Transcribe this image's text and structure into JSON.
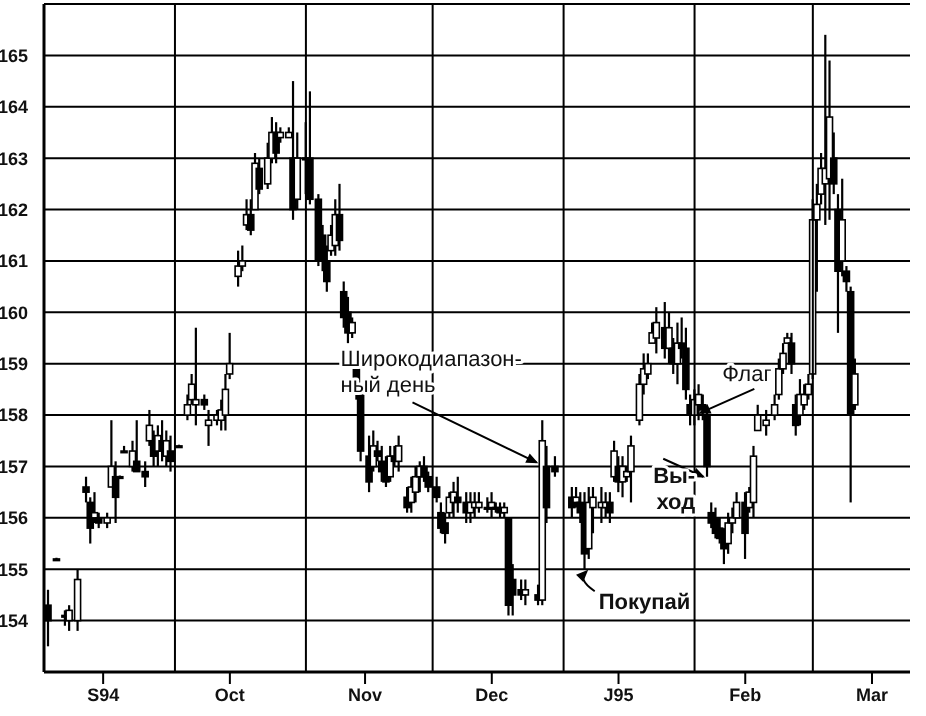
{
  "chart_data": {
    "type": "candlestick",
    "x": [
      "1994-09-01",
      "1994-09-03",
      "1994-09-05",
      "1994-09-06",
      "1994-09-08",
      "1994-09-10",
      "1994-09-11",
      "1994-09-12",
      "1994-09-13",
      "1994-09-15",
      "1994-09-16",
      "1994-09-17",
      "1994-09-18",
      "1994-09-19",
      "1994-09-21",
      "1994-09-22",
      "1994-09-24",
      "1994-09-25",
      "1994-09-26",
      "1994-09-27",
      "1994-09-28",
      "1994-09-29",
      "1994-09-30",
      "1994-10-02",
      "1994-10-04",
      "1994-10-05",
      "1994-10-06",
      "1994-10-08",
      "1994-10-09",
      "1994-10-11",
      "1994-10-12",
      "1994-10-13",
      "1994-10-14",
      "1994-10-16",
      "1994-10-17",
      "1994-10-18",
      "1994-10-19",
      "1994-10-20",
      "1994-10-21",
      "1994-10-23",
      "1994-10-24",
      "1994-10-25",
      "1994-10-26",
      "1994-10-28",
      "1994-10-29",
      "1994-10-30",
      "1994-11-01",
      "1994-11-02",
      "1994-11-04",
      "1994-11-05",
      "1994-11-06",
      "1994-11-07",
      "1994-11-08",
      "1994-11-09",
      "1994-11-10",
      "1994-11-11",
      "1994-11-12",
      "1994-11-13",
      "1994-11-14",
      "1994-11-16",
      "1994-11-17",
      "1994-11-18",
      "1994-11-19",
      "1994-11-20",
      "1994-11-21",
      "1994-11-22",
      "1994-11-23",
      "1994-11-25",
      "1994-11-26",
      "1994-11-27",
      "1994-11-28",
      "1994-11-29",
      "1994-11-30",
      "1994-12-02",
      "1994-12-03",
      "1994-12-04",
      "1994-12-05",
      "1994-12-06",
      "1994-12-07",
      "1994-12-09",
      "1994-12-10",
      "1994-12-11",
      "1994-12-12",
      "1994-12-14",
      "1994-12-15",
      "1994-12-16",
      "1994-12-17",
      "1994-12-18",
      "1994-12-19",
      "1994-12-20",
      "1994-12-22",
      "1994-12-23",
      "1994-12-26",
      "1994-12-27",
      "1994-12-28",
      "1994-12-30",
      "1995-01-03",
      "1995-01-04",
      "1995-01-05",
      "1995-01-06",
      "1995-01-07",
      "1995-01-08",
      "1995-01-10",
      "1995-01-11",
      "1995-01-12",
      "1995-01-13",
      "1995-01-14",
      "1995-01-15",
      "1995-01-16",
      "1995-01-17",
      "1995-01-19",
      "1995-01-20",
      "1995-01-21",
      "1995-01-22",
      "1995-01-23",
      "1995-01-25",
      "1995-01-26",
      "1995-01-27",
      "1995-01-28",
      "1995-01-29",
      "1995-01-30",
      "1995-01-31",
      "1995-02-01",
      "1995-02-02",
      "1995-02-03",
      "1995-02-04",
      "1995-02-05",
      "1995-02-06",
      "1995-02-07",
      "1995-02-08",
      "1995-02-09",
      "1995-02-10",
      "1995-02-11",
      "1995-02-13",
      "1995-02-14",
      "1995-02-15",
      "1995-02-16",
      "1995-02-18",
      "1995-02-20",
      "1995-02-21",
      "1995-02-22",
      "1995-02-23",
      "1995-02-24",
      "1995-02-25",
      "1995-02-26",
      "1995-02-27",
      "1995-02-28",
      "1995-03-01",
      "1995-03-02",
      "1995-03-03",
      "1995-03-04",
      "1995-03-05",
      "1995-03-06",
      "1995-03-07",
      "1995-03-08",
      "1995-03-09",
      "1995-03-10",
      "1995-03-11"
    ],
    "ohlc": [
      [
        154.3,
        154.6,
        153.5,
        154.0
      ],
      [
        155.2,
        155.2,
        155.2,
        155.2
      ],
      [
        154.1,
        154.2,
        153.9,
        154.1
      ],
      [
        154.0,
        154.3,
        153.8,
        154.2
      ],
      [
        154.0,
        155.0,
        153.8,
        154.8
      ],
      [
        156.6,
        156.8,
        156.3,
        156.5
      ],
      [
        156.3,
        156.4,
        155.5,
        155.8
      ],
      [
        156.0,
        156.5,
        155.9,
        156.1
      ],
      [
        156.0,
        156.1,
        155.8,
        155.9
      ],
      [
        155.9,
        156.1,
        155.8,
        156.0
      ],
      [
        156.6,
        157.9,
        156.6,
        157.0
      ],
      [
        156.8,
        157.1,
        155.9,
        156.4
      ],
      [
        156.8,
        156.8,
        156.8,
        156.8
      ],
      [
        157.3,
        157.4,
        157.3,
        157.3
      ],
      [
        157.0,
        157.5,
        156.9,
        157.3
      ],
      [
        157.1,
        157.9,
        156.9,
        156.9
      ],
      [
        156.9,
        157.1,
        156.6,
        156.8
      ],
      [
        157.5,
        158.1,
        157.4,
        157.8
      ],
      [
        157.5,
        157.7,
        157.0,
        157.2
      ],
      [
        157.3,
        157.8,
        157.0,
        157.6
      ],
      [
        157.5,
        157.9,
        157.1,
        157.3
      ],
      [
        157.2,
        157.7,
        157.0,
        157.5
      ],
      [
        157.3,
        157.6,
        156.9,
        157.1
      ],
      [
        157.4,
        157.4,
        157.4,
        157.4
      ],
      [
        158.0,
        158.4,
        157.9,
        158.2
      ],
      [
        158.3,
        158.8,
        158.2,
        158.6
      ],
      [
        158.2,
        159.7,
        157.8,
        158.3
      ],
      [
        158.3,
        158.4,
        158.1,
        158.2
      ],
      [
        157.8,
        158.1,
        157.4,
        157.9
      ],
      [
        157.9,
        158.1,
        157.8,
        158.0
      ],
      [
        157.9,
        158.3,
        157.7,
        158.1
      ],
      [
        158.0,
        158.8,
        157.7,
        158.5
      ],
      [
        158.8,
        159.6,
        158.7,
        159.0
      ],
      [
        160.7,
        161.2,
        160.5,
        160.9
      ],
      [
        160.9,
        161.3,
        160.8,
        161.0
      ],
      [
        161.7,
        162.2,
        161.6,
        161.9
      ],
      [
        161.9,
        162.2,
        161.5,
        161.6
      ],
      [
        162.0,
        163.1,
        162.0,
        162.9
      ],
      [
        162.8,
        163.0,
        162.3,
        162.4
      ],
      [
        162.5,
        163.3,
        162.4,
        163.0
      ],
      [
        163.0,
        163.8,
        162.9,
        163.5
      ],
      [
        163.5,
        163.7,
        162.9,
        163.1
      ],
      [
        163.4,
        163.6,
        163.3,
        163.5
      ],
      [
        163.4,
        163.6,
        163.4,
        163.5
      ],
      [
        163.0,
        164.5,
        161.8,
        162.0
      ],
      [
        162.2,
        163.5,
        162.0,
        163.0
      ],
      [
        163.0,
        163.7,
        162.3,
        163.0
      ],
      [
        163.0,
        164.3,
        162.1,
        162.2
      ],
      [
        162.2,
        162.3,
        160.9,
        161.0
      ],
      [
        161.5,
        161.7,
        160.8,
        161.0
      ],
      [
        161.0,
        161.3,
        160.4,
        160.6
      ],
      [
        161.2,
        161.7,
        161.1,
        161.5
      ],
      [
        161.3,
        162.2,
        161.1,
        161.9
      ],
      [
        161.9,
        162.5,
        161.2,
        161.4
      ],
      [
        160.4,
        160.6,
        159.7,
        159.9
      ],
      [
        160.0,
        160.3,
        159.4,
        159.6
      ],
      [
        159.6,
        159.9,
        159.5,
        159.8
      ],
      [
        158.9,
        159.0,
        158.3,
        158.5
      ],
      [
        158.4,
        158.6,
        157.1,
        157.3
      ],
      [
        157.2,
        157.6,
        156.5,
        156.7
      ],
      [
        157.0,
        157.7,
        156.9,
        157.4
      ],
      [
        157.3,
        157.5,
        157.1,
        157.2
      ],
      [
        157.1,
        157.4,
        156.7,
        156.9
      ],
      [
        157.0,
        157.2,
        156.6,
        156.7
      ],
      [
        156.8,
        157.4,
        156.7,
        157.2
      ],
      [
        157.2,
        157.4,
        157.0,
        157.1
      ],
      [
        157.1,
        157.6,
        156.9,
        157.4
      ],
      [
        156.4,
        156.6,
        156.1,
        156.2
      ],
      [
        156.3,
        156.8,
        156.1,
        156.6
      ],
      [
        156.5,
        157.0,
        156.3,
        156.8
      ],
      [
        156.8,
        157.1,
        156.5,
        157.0
      ],
      [
        157.0,
        157.2,
        156.7,
        156.8
      ],
      [
        156.8,
        156.9,
        156.5,
        156.6
      ],
      [
        156.6,
        156.8,
        156.3,
        156.4
      ],
      [
        156.1,
        156.3,
        155.7,
        155.8
      ],
      [
        155.9,
        156.1,
        155.5,
        155.7
      ],
      [
        156.1,
        156.5,
        156.0,
        156.4
      ],
      [
        156.3,
        156.7,
        156.0,
        156.5
      ],
      [
        156.4,
        156.8,
        156.1,
        156.3
      ],
      [
        156.3,
        156.5,
        155.9,
        156.1
      ],
      [
        156.1,
        156.5,
        155.9,
        156.3
      ],
      [
        156.2,
        156.5,
        156.0,
        156.3
      ],
      [
        156.2,
        156.5,
        156.1,
        156.3
      ],
      [
        156.2,
        156.4,
        156.1,
        156.2
      ],
      [
        156.2,
        156.5,
        156.0,
        156.3
      ],
      [
        156.2,
        156.3,
        156.1,
        156.2
      ],
      [
        156.2,
        156.3,
        156.0,
        156.1
      ],
      [
        156.1,
        156.3,
        156.0,
        156.2
      ],
      [
        156.0,
        156.0,
        154.1,
        154.3
      ],
      [
        154.8,
        155.1,
        154.1,
        154.5
      ],
      [
        154.6,
        154.8,
        154.4,
        154.5
      ],
      [
        154.5,
        154.8,
        154.3,
        154.6
      ],
      [
        154.5,
        154.7,
        154.3,
        154.4
      ],
      [
        154.4,
        157.9,
        154.3,
        157.5
      ],
      [
        157.0,
        157.4,
        155.9,
        156.2
      ],
      [
        157.0,
        157.2,
        156.8,
        156.9
      ],
      [
        156.4,
        156.6,
        156.0,
        156.2
      ],
      [
        156.3,
        156.6,
        156.2,
        156.4
      ],
      [
        156.3,
        156.5,
        155.9,
        156.1
      ],
      [
        156.2,
        156.5,
        155.0,
        155.3
      ],
      [
        155.4,
        156.6,
        155.2,
        156.3
      ],
      [
        156.2,
        156.6,
        155.7,
        156.4
      ],
      [
        156.2,
        156.6,
        155.9,
        156.3
      ],
      [
        156.2,
        156.5,
        156.0,
        156.3
      ],
      [
        156.3,
        156.5,
        155.9,
        156.1
      ],
      [
        156.8,
        157.5,
        156.7,
        157.3
      ],
      [
        157.0,
        157.2,
        156.5,
        156.7
      ],
      [
        156.7,
        157.2,
        156.4,
        157.0
      ],
      [
        156.8,
        157.0,
        156.7,
        156.9
      ],
      [
        156.9,
        157.6,
        156.3,
        157.4
      ],
      [
        157.9,
        158.8,
        157.8,
        158.6
      ],
      [
        158.6,
        159.2,
        158.4,
        158.9
      ],
      [
        158.8,
        159.2,
        158.7,
        159.0
      ],
      [
        159.4,
        159.8,
        159.4,
        159.6
      ],
      [
        159.5,
        160.1,
        159.2,
        159.8
      ],
      [
        159.7,
        160.2,
        159.1,
        159.3
      ],
      [
        159.3,
        160.0,
        159.0,
        159.7
      ],
      [
        159.3,
        159.5,
        158.8,
        159.0
      ],
      [
        159.0,
        159.8,
        158.6,
        159.4
      ],
      [
        159.4,
        159.9,
        159.1,
        159.3
      ],
      [
        159.3,
        159.7,
        158.3,
        158.5
      ],
      [
        158.2,
        158.4,
        157.8,
        158.0
      ],
      [
        158.0,
        158.5,
        157.8,
        158.3
      ],
      [
        158.2,
        158.6,
        157.9,
        158.4
      ],
      [
        158.2,
        158.4,
        157.9,
        158.1
      ],
      [
        158.0,
        158.1,
        156.8,
        157.0
      ],
      [
        156.1,
        156.3,
        155.8,
        155.9
      ],
      [
        156.0,
        156.2,
        155.6,
        155.7
      ],
      [
        155.8,
        156.0,
        155.5,
        155.6
      ],
      [
        155.6,
        155.8,
        155.1,
        155.4
      ],
      [
        155.5,
        156.1,
        155.3,
        155.9
      ],
      [
        155.9,
        156.2,
        155.7,
        156.0
      ],
      [
        156.0,
        156.5,
        156.0,
        156.3
      ],
      [
        156.3,
        156.5,
        155.2,
        155.7
      ],
      [
        156.2,
        156.6,
        156.1,
        156.5
      ],
      [
        156.3,
        157.4,
        156.0,
        157.2
      ],
      [
        157.7,
        158.2,
        157.7,
        158.0
      ],
      [
        157.8,
        158.1,
        157.6,
        157.9
      ],
      [
        158.0,
        158.4,
        157.9,
        158.2
      ],
      [
        158.4,
        159.1,
        158.3,
        158.9
      ],
      [
        158.9,
        159.4,
        158.8,
        159.2
      ],
      [
        159.4,
        159.6,
        159.4,
        159.5
      ],
      [
        159.4,
        159.6,
        158.8,
        159.0
      ],
      [
        158.2,
        158.4,
        157.6,
        157.8
      ],
      [
        158.0,
        158.7,
        157.8,
        158.4
      ],
      [
        158.2,
        158.6,
        158.1,
        158.4
      ],
      [
        158.4,
        158.8,
        158.3,
        158.6
      ],
      [
        158.8,
        162.2,
        158.7,
        161.8
      ],
      [
        161.8,
        162.5,
        160.4,
        162.1
      ],
      [
        162.3,
        163.1,
        162.1,
        162.8
      ],
      [
        162.5,
        165.4,
        161.7,
        162.8
      ],
      [
        162.6,
        164.9,
        161.8,
        163.8
      ],
      [
        163.0,
        163.5,
        162.3,
        162.5
      ],
      [
        162.0,
        162.3,
        159.6,
        160.8
      ],
      [
        161.0,
        162.6,
        160.7,
        161.8
      ],
      [
        160.8,
        160.9,
        160.4,
        160.6
      ],
      [
        160.4,
        160.5,
        156.3,
        158.0
      ],
      [
        158.2,
        159.1,
        158.1,
        158.8
      ]
    ],
    "color": "#000000",
    "xlim": [
      "1994-08-31",
      "1995-03-24"
    ],
    "xticks": [
      {
        "value": "1994-09-14",
        "label": "S94"
      },
      {
        "value": "1994-10-14",
        "label": "Oct"
      },
      {
        "value": "1994-11-15",
        "label": "Nov"
      },
      {
        "value": "1994-12-15",
        "label": "Dec"
      },
      {
        "value": "1995-01-14",
        "label": "J95"
      },
      {
        "value": "1995-02-13",
        "label": "Feb"
      },
      {
        "value": "1995-03-15",
        "label": "Mar"
      }
    ],
    "ylim": [
      153,
      166
    ],
    "yticks": [
      154,
      155,
      156,
      157,
      158,
      159,
      160,
      161,
      162,
      163,
      164,
      165
    ],
    "grid": "y",
    "ref_lines": [
      {
        "axis": "x",
        "value": "1994-10-01",
        "color": "#000000"
      },
      {
        "axis": "x",
        "value": "1994-11-01",
        "color": "#000000"
      },
      {
        "axis": "x",
        "value": "1994-12-01",
        "color": "#000000"
      },
      {
        "axis": "x",
        "value": "1995-01-01",
        "color": "#000000"
      },
      {
        "axis": "x",
        "value": "1995-02-01",
        "color": "#000000"
      },
      {
        "axis": "x",
        "value": "1995-03-01",
        "color": "#000000"
      }
    ],
    "annotations": [
      {
        "text": "Широкодиапазон-\nный день",
        "x": "1994-12-27",
        "y": 157
      },
      {
        "text": "Флаг",
        "x": "1995-01-31",
        "y": 158.2
      },
      {
        "text": "Вы-\nход",
        "x": "1995-02-04",
        "y": 156.8
      },
      {
        "text": "Покупай",
        "x": "1995-01-06",
        "y": 155
      }
    ]
  }
}
